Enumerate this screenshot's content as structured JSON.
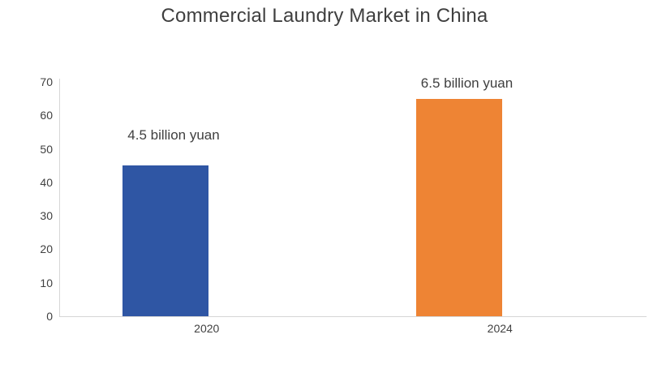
{
  "chart_data": {
    "type": "bar",
    "title": "Commercial Laundry Market in China",
    "categories": [
      "2020",
      "2024"
    ],
    "values": [
      45,
      65
    ],
    "values_billion_yuan": [
      4.5,
      6.5
    ],
    "data_labels": [
      "4.5 billion yuan",
      "6.5 billion yuan"
    ],
    "bar_colors": [
      "#2F56A4",
      "#EE8434"
    ],
    "ylim": [
      0,
      70
    ],
    "yticks": [
      0,
      10,
      20,
      30,
      40,
      50,
      60,
      70
    ],
    "xlabel": "",
    "ylabel": "",
    "grid": false,
    "legend": false,
    "background": "#FFFFFF",
    "text_color": "#404040",
    "axis_line_color": "#D6D6D6"
  }
}
